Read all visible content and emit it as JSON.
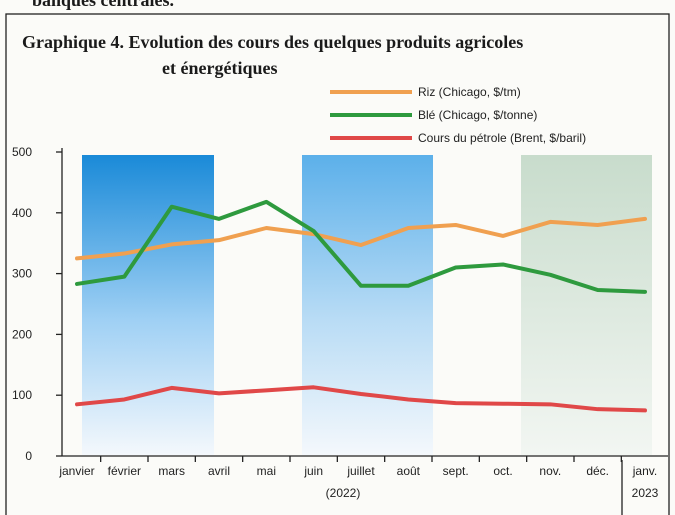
{
  "header_text": "banques centrales.",
  "chart_data": {
    "type": "line",
    "title": [
      "Graphique 4. Evolution des cours des quelques produits agricoles",
      "et énergétiques"
    ],
    "categories": [
      "janvier",
      "février",
      "mars",
      "avril",
      "mai",
      "juin",
      "juillet",
      "août",
      "sept.",
      "oct.",
      "nov.",
      "déc.",
      "janv."
    ],
    "x_annotations": [
      "(2022)",
      "2023"
    ],
    "series": [
      {
        "name": "Riz (Chicago, $/tm)",
        "color": "#f0a050",
        "values": [
          325,
          333,
          348,
          355,
          375,
          365,
          347,
          375,
          380,
          362,
          385,
          380,
          390
        ]
      },
      {
        "name": "Blé (Chicago, $/tonne)",
        "color": "#2e9a3e",
        "values": [
          283,
          295,
          410,
          390,
          418,
          370,
          280,
          280,
          310,
          315,
          298,
          273,
          270
        ]
      },
      {
        "name": "Cours du pétrole (Brent, $/baril)",
        "color": "#e04848",
        "values": [
          85,
          93,
          112,
          103,
          108,
          113,
          102,
          93,
          87,
          86,
          85,
          77,
          75
        ]
      }
    ],
    "ylim": [
      0,
      500
    ],
    "yticks": [
      0,
      100,
      200,
      300,
      400,
      500
    ],
    "grid": false,
    "legend": "top-right"
  }
}
